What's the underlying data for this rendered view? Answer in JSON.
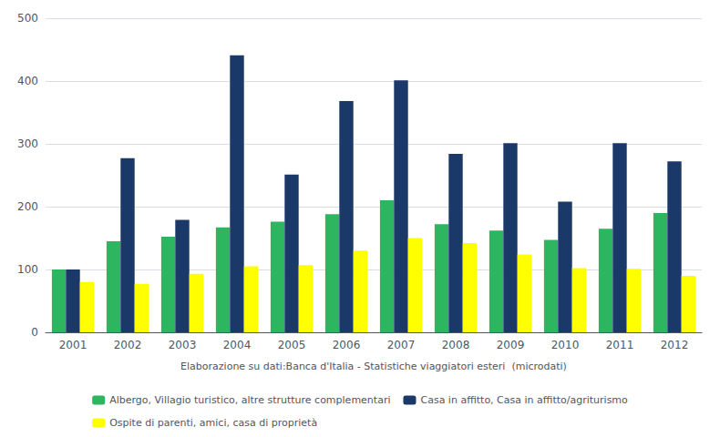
{
  "chart_data": {
    "type": "bar",
    "xlabel": "Elaborazione su dati:Banca d'Italia - Statistiche viaggiatori esteri  (microdati)",
    "categories": [
      "2001",
      "2002",
      "2003",
      "2004",
      "2005",
      "2006",
      "2007",
      "2008",
      "2009",
      "2010",
      "2011",
      "2012"
    ],
    "series": [
      {
        "name": "Albergo, Villagio turistico, altre strutture complementari",
        "color": "#2db560",
        "values": [
          100,
          145,
          152,
          167,
          176,
          188,
          210,
          172,
          162,
          147,
          165,
          190
        ]
      },
      {
        "name": "Casa in affitto, Casa in affitto/agriturismo",
        "color": "#1a3868",
        "values": [
          100,
          277,
          179,
          441,
          251,
          368,
          401,
          284,
          301,
          208,
          301,
          272
        ]
      },
      {
        "name": "Ospite di parenti, amici, casa di proprietà",
        "color": "#ffff00",
        "values": [
          80,
          77,
          93,
          105,
          107,
          130,
          150,
          142,
          124,
          102,
          101,
          90
        ]
      }
    ],
    "ylim": [
      0,
      500
    ],
    "yticks": [
      0,
      100,
      200,
      300,
      400,
      500
    ],
    "grid": true,
    "legend": "bottom"
  }
}
